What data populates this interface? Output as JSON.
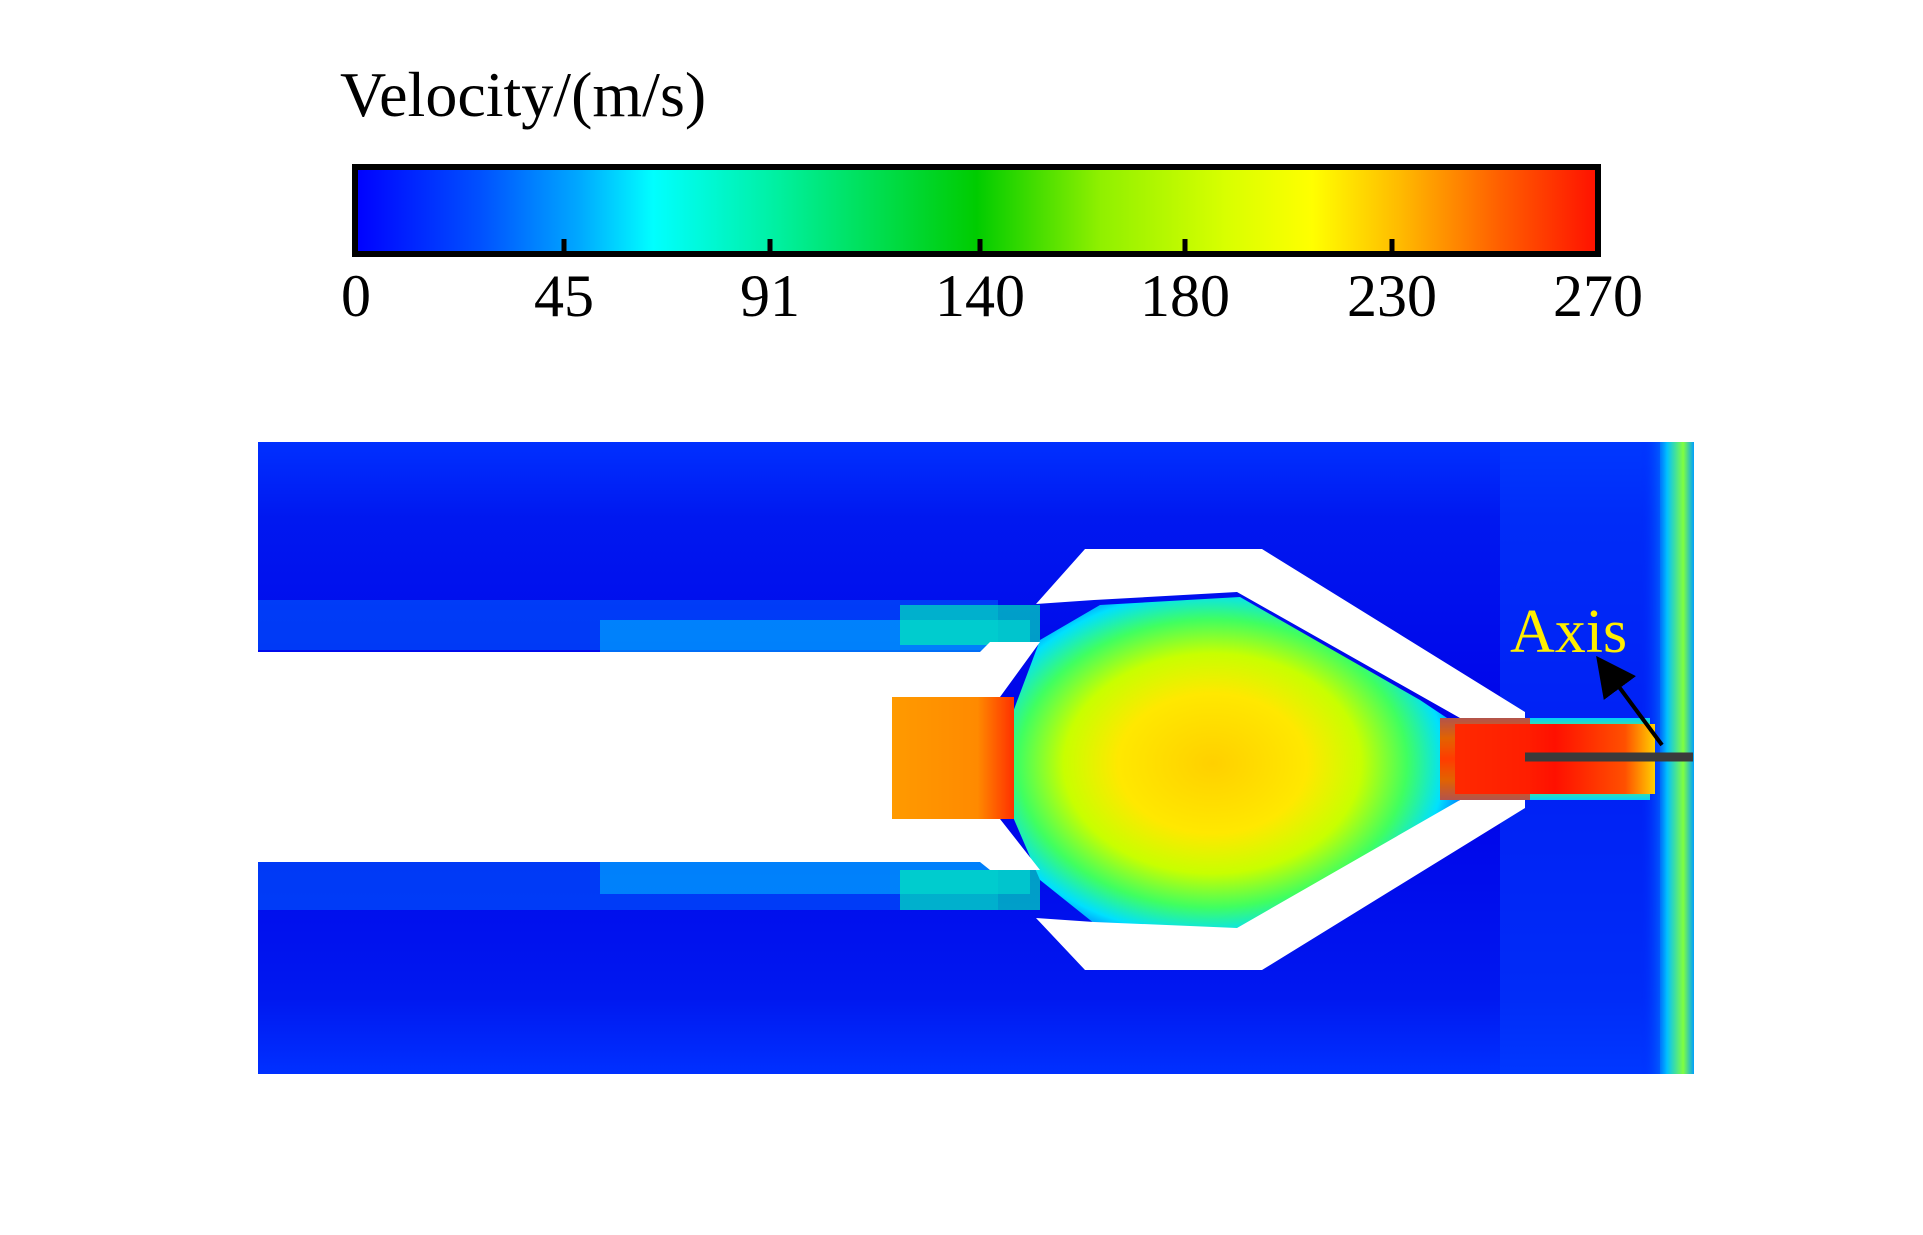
{
  "colorbar": {
    "title": "Velocity/(m/s)",
    "min": 0,
    "max": 270,
    "ticks": [
      "0",
      "45",
      "91",
      "140",
      "180",
      "230",
      "270"
    ],
    "colormap": [
      "#0000ff",
      "#00a0ff",
      "#00ffff",
      "#00e676",
      "#00cc00",
      "#a0ff00",
      "#ffff00",
      "#ffb000",
      "#ff5000",
      "#ff0000"
    ]
  },
  "annotation": {
    "label": "Axis",
    "color": "#ffee00"
  },
  "colors": {
    "low": "#0000ff",
    "mid": "#ffff00",
    "high": "#ff0000",
    "wall": "#ffffff"
  }
}
